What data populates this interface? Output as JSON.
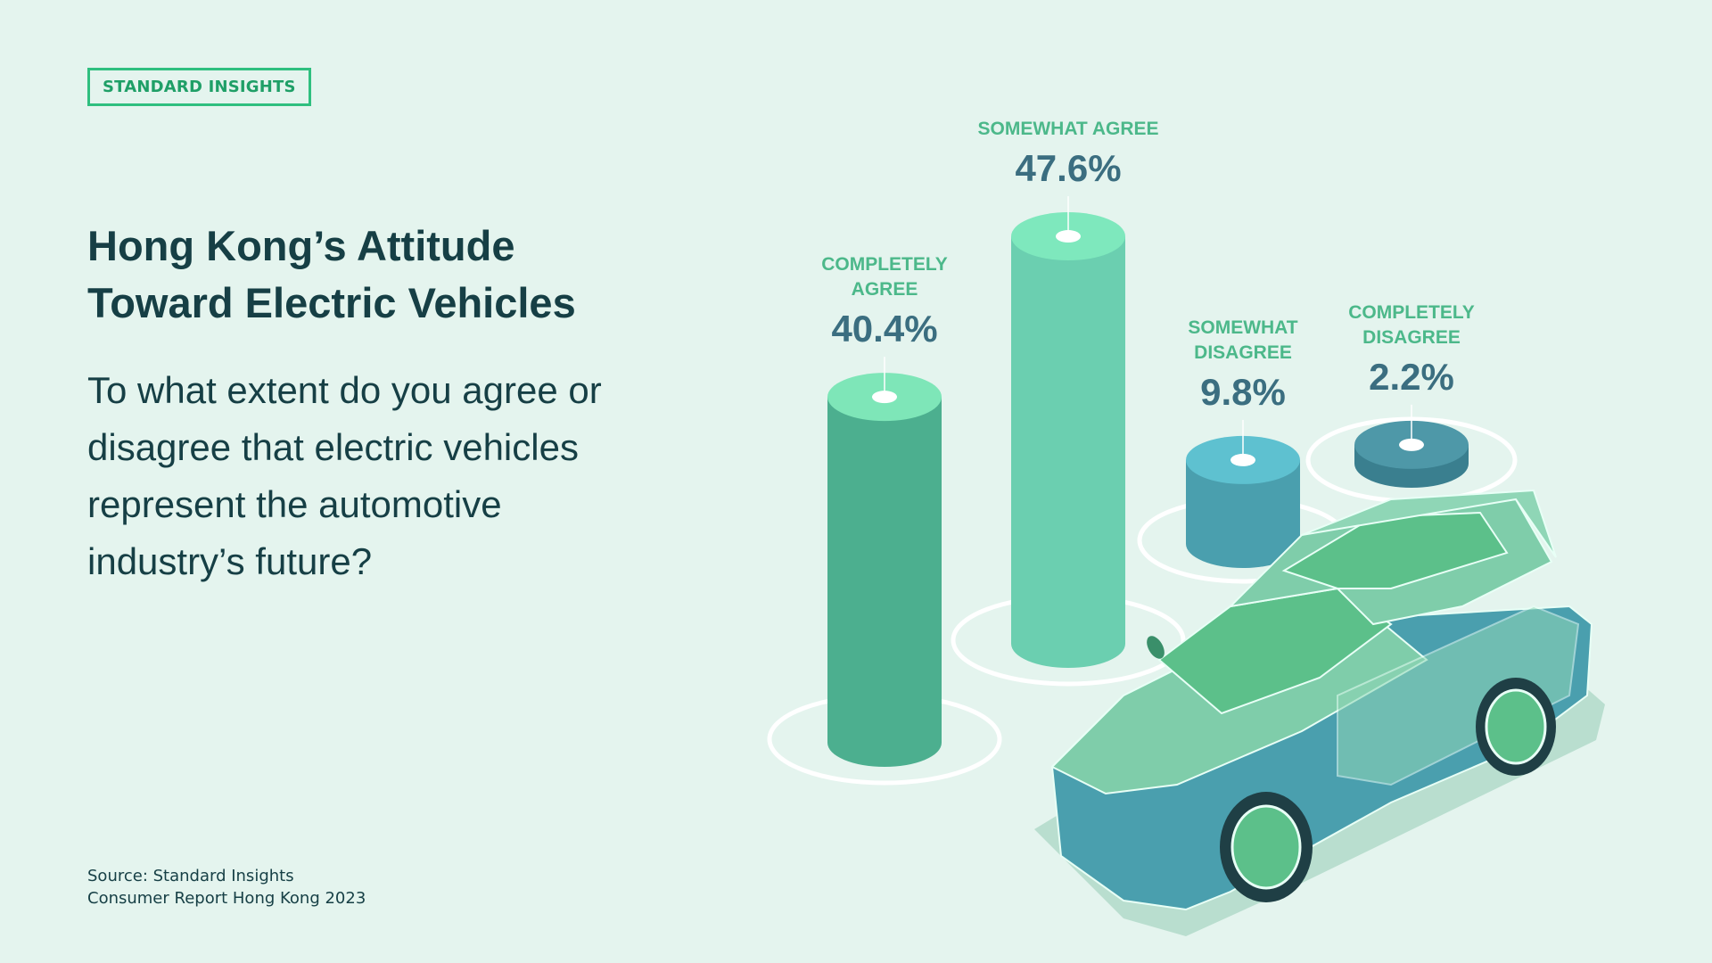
{
  "brand": "STANDARD INSIGHTS",
  "source": "Source: Standard Insights\nConsumer Report Hong Kong 2023",
  "chart_data": {
    "type": "bar",
    "title": "Hong Kong’s Attitude\nToward Electric Vehicles",
    "subtitle": "To what extent do you agree or\ndisagree that electric vehicles\nrepresent the automotive\nindustry’s future?",
    "categories": [
      "COMPLETELY\nAGREE",
      "SOMEWHAT AGREE",
      "SOMEWHAT\nDISAGREE",
      "COMPLETELY\nDISAGREE"
    ],
    "values": [
      40.4,
      47.6,
      9.8,
      2.2
    ],
    "value_labels": [
      "40.4%",
      "47.6%",
      "9.8%",
      "2.2%"
    ],
    "colors": [
      "#4caf8f",
      "#6bcfb0",
      "#4a9fae",
      "#3a7f8f"
    ],
    "top_colors": [
      "#7ee6b8",
      "#7ee8bd",
      "#5ec1d0",
      "#4e98a8"
    ]
  }
}
